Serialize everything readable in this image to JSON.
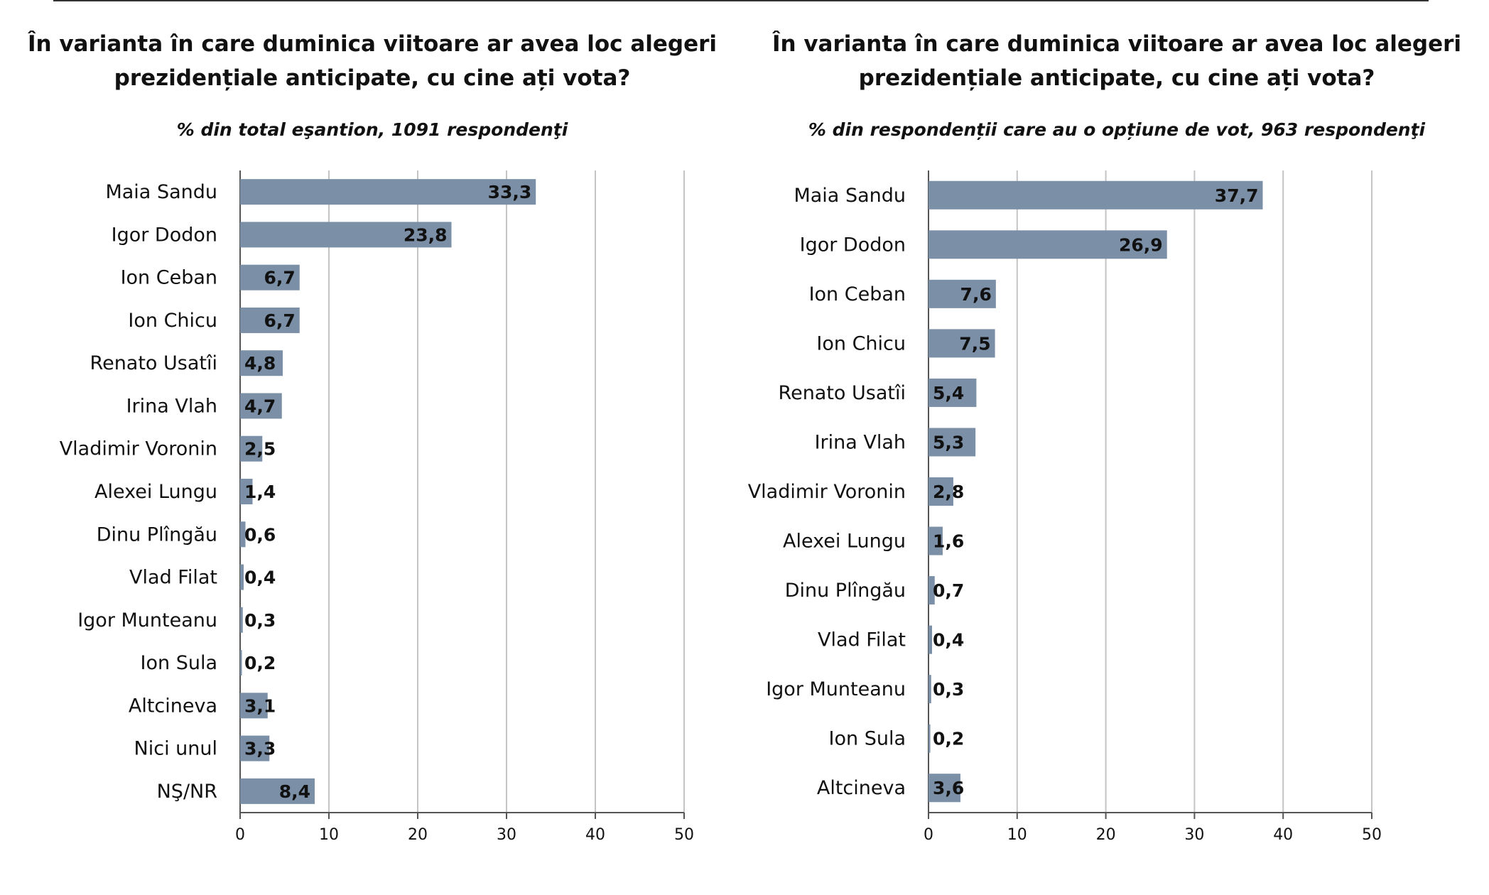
{
  "chart_data": [
    {
      "type": "bar",
      "orientation": "horizontal",
      "title": "În varianta în care duminica viitoare ar avea loc alegeri\nprezidențiale anticipate, cu cine ați vota?",
      "subtitle": "% din total eşantion, 1091 respondenţi",
      "categories": [
        "Maia Sandu",
        "Igor Dodon",
        "Ion Ceban",
        "Ion Chicu",
        "Renato Usatîi",
        "Irina Vlah",
        "Vladimir Voronin",
        "Alexei Lungu",
        "Dinu Plîngău",
        "Vlad Filat",
        "Igor Munteanu",
        "Ion Sula",
        "Altcineva",
        "Nici unul",
        "NŞ/NR"
      ],
      "values": [
        33.3,
        23.8,
        6.7,
        6.7,
        4.8,
        4.7,
        2.5,
        1.4,
        0.6,
        0.4,
        0.3,
        0.2,
        3.1,
        3.3,
        8.4
      ],
      "value_labels": [
        "33,3",
        "23,8",
        "6,7",
        "6,7",
        "4,8",
        "4,7",
        "2,5",
        "1,4",
        "0,6",
        "0,4",
        "0,3",
        "0,2",
        "3,1",
        "3,3",
        "8,4"
      ],
      "xlim": [
        0,
        50
      ],
      "xticks": [
        0,
        10,
        20,
        30,
        40,
        50
      ],
      "grid": true,
      "bar_color": "#7b8fa6"
    },
    {
      "type": "bar",
      "orientation": "horizontal",
      "title": "În varianta în care duminica viitoare ar avea loc alegeri\nprezidențiale anticipate, cu cine ați vota?",
      "subtitle": "% din respondenții care au o opțiune de vot, 963 respondenţi",
      "categories": [
        "Maia Sandu",
        "Igor Dodon",
        "Ion Ceban",
        "Ion Chicu",
        "Renato Usatîi",
        "Irina Vlah",
        "Vladimir Voronin",
        "Alexei Lungu",
        "Dinu Plîngău",
        "Vlad Filat",
        "Igor Munteanu",
        "Ion Sula",
        "Altcineva"
      ],
      "values": [
        37.7,
        26.9,
        7.6,
        7.5,
        5.4,
        5.3,
        2.8,
        1.6,
        0.7,
        0.4,
        0.3,
        0.2,
        3.6
      ],
      "value_labels": [
        "37,7",
        "26,9",
        "7,6",
        "7,5",
        "5,4",
        "5,3",
        "2,8",
        "1,6",
        "0,7",
        "0,4",
        "0,3",
        "0,2",
        "3,6"
      ],
      "xlim": [
        0,
        50
      ],
      "xticks": [
        0,
        10,
        20,
        30,
        40,
        50
      ],
      "grid": true,
      "bar_color": "#7b8fa6"
    }
  ]
}
